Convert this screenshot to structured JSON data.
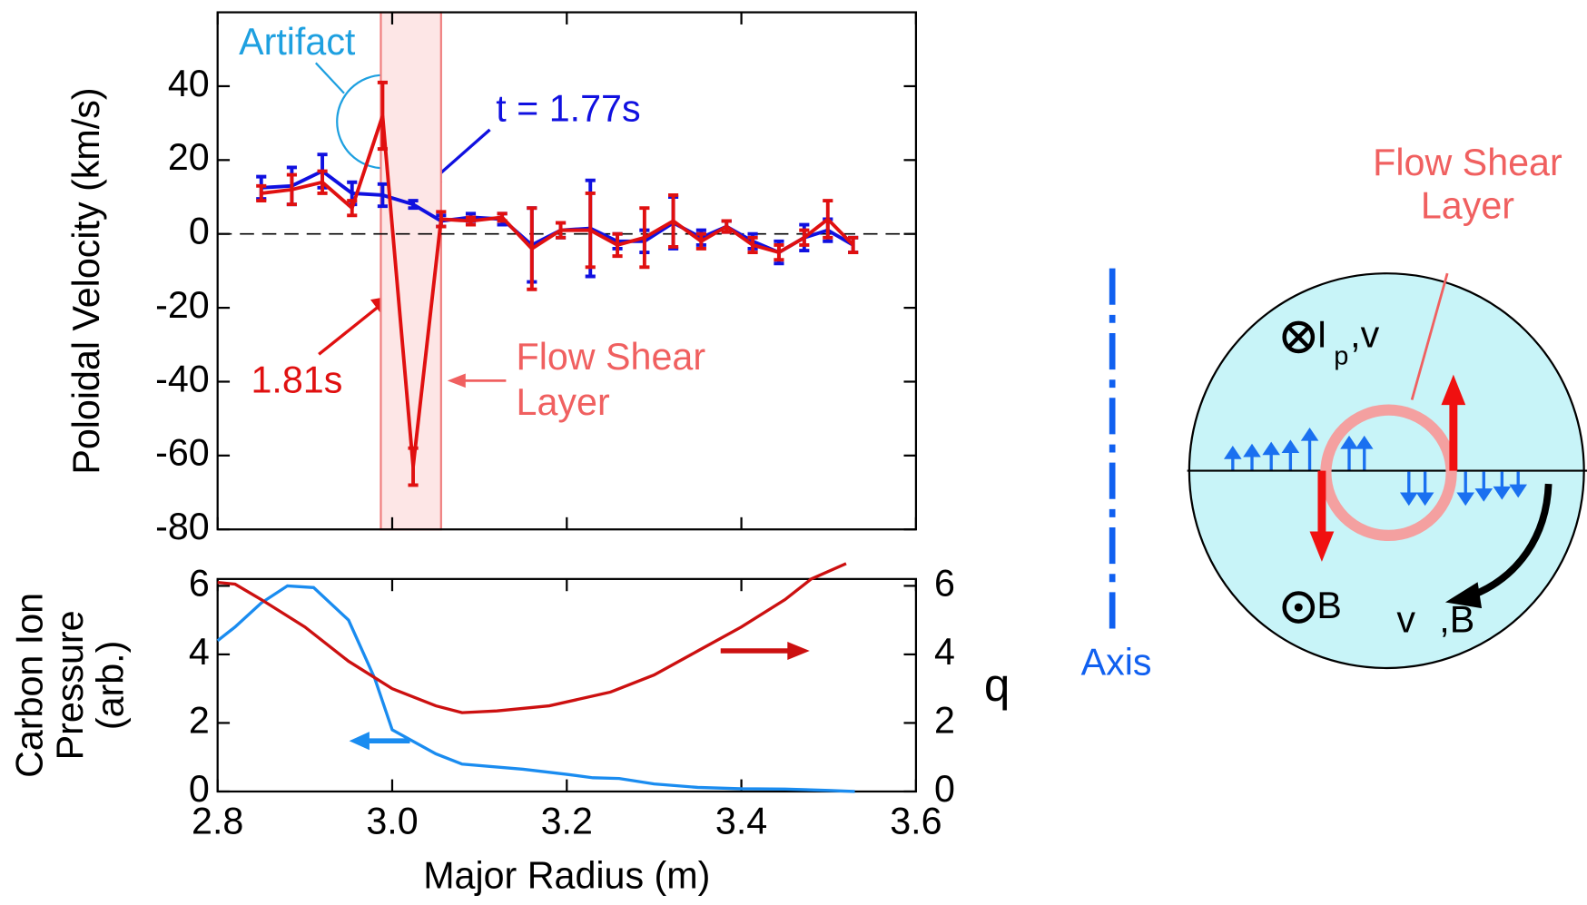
{
  "chart_data": [
    {
      "type": "line",
      "ylabel": "Poloidal Velocity (km/s)",
      "xlim": [
        2.8,
        3.6
      ],
      "ylim": [
        -80,
        60
      ],
      "yticks": [
        -80,
        -60,
        -40,
        -20,
        0,
        20,
        40
      ],
      "x": [
        2.85,
        2.885,
        2.92,
        2.954,
        2.989,
        3.024,
        3.056,
        3.09,
        3.126,
        3.16,
        3.193,
        3.227,
        3.258,
        3.289,
        3.322,
        3.354,
        3.383,
        3.413,
        3.443,
        3.472,
        3.499,
        3.528
      ],
      "series": [
        {
          "name": "t = 1.77s",
          "color": "#1010e0",
          "values": [
            12.5,
            13,
            17,
            11,
            10.5,
            8,
            3.5,
            4.5,
            4,
            -3,
            1,
            1.5,
            -2,
            -2,
            3,
            -1,
            2,
            -2,
            -5,
            -1,
            1,
            -3
          ],
          "errors": [
            3,
            5,
            4.5,
            3,
            3,
            1,
            1.5,
            1,
            1.5,
            10,
            2,
            13,
            2,
            3,
            7,
            2,
            1.5,
            2,
            3,
            3.5,
            3,
            2
          ]
        },
        {
          "name": "1.81s",
          "color": "#e01010",
          "values": [
            11,
            12,
            14,
            7,
            32,
            -63,
            4,
            3.5,
            4.5,
            -4,
            1,
            1,
            -3,
            -1,
            3.5,
            -2,
            2,
            -3,
            -5,
            -1,
            4,
            -3
          ],
          "errors": [
            2,
            4,
            3,
            2,
            9,
            5,
            2,
            1,
            1,
            11,
            2,
            10,
            3,
            8,
            7,
            2,
            1.5,
            2,
            2,
            2,
            5,
            2
          ]
        }
      ],
      "shear_band": [
        2.987,
        3.056
      ],
      "annotations": {
        "artifact": "Artifact",
        "shear": [
          "Flow Shear",
          "Layer"
        ]
      }
    },
    {
      "type": "line",
      "xlabel": "Major Radius (m)",
      "ylabel": [
        "Carbon Ion",
        "Pressure",
        "(arb.)"
      ],
      "y2label": "q",
      "xlim": [
        2.8,
        3.6
      ],
      "xticks": [
        {
          "value": 2.8,
          "label": "2.8"
        },
        {
          "value": 3.0,
          "label": "3.0"
        },
        {
          "value": 3.2,
          "label": "3.2"
        },
        {
          "value": 3.4,
          "label": "3.4"
        },
        {
          "value": 3.6,
          "label": "3.6"
        }
      ],
      "ylim": [
        0,
        6.2
      ],
      "yticks": [
        0,
        2,
        4,
        6
      ],
      "y2lim": [
        0,
        6.2
      ],
      "y2ticks": [
        0,
        2,
        4,
        6
      ],
      "series": [
        {
          "color": "#1a8cf0",
          "x": [
            2.8,
            2.82,
            2.85,
            2.88,
            2.91,
            2.95,
            2.98,
            3.0,
            3.05,
            3.08,
            3.15,
            3.2,
            3.23,
            3.26,
            3.3,
            3.35,
            3.4,
            3.45,
            3.5,
            3.53
          ],
          "values": [
            4.4,
            4.8,
            5.5,
            6.0,
            5.95,
            5.0,
            3.3,
            1.8,
            1.1,
            0.8,
            0.65,
            0.5,
            0.4,
            0.38,
            0.22,
            0.12,
            0.08,
            0.07,
            0.03,
            0.0
          ]
        },
        {
          "color": "#cc1010",
          "axis": "y2",
          "x": [
            2.8,
            2.82,
            2.85,
            2.9,
            2.95,
            3.0,
            3.05,
            3.08,
            3.12,
            3.18,
            3.25,
            3.3,
            3.35,
            3.4,
            3.45,
            3.48,
            3.52
          ],
          "values": [
            6.1,
            6.05,
            5.6,
            4.8,
            3.8,
            3.0,
            2.5,
            2.3,
            2.35,
            2.5,
            2.9,
            3.4,
            4.1,
            4.8,
            5.6,
            6.2,
            6.65
          ]
        }
      ]
    }
  ],
  "diagram": {
    "shear": [
      "Flow Shear",
      "Layer"
    ],
    "current": [
      "I",
      "p",
      ",v"
    ],
    "field": "B",
    "drift": [
      "v",
      ",B"
    ],
    "axis": "Axis"
  }
}
